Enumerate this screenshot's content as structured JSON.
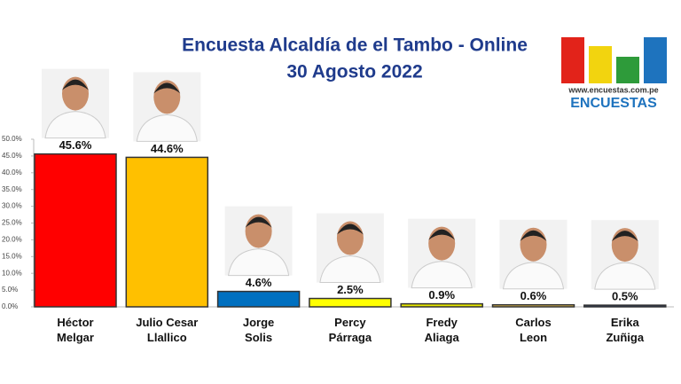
{
  "chart_data": {
    "type": "bar",
    "title": "Encuesta Alcaldía de el Tambo - Online",
    "subtitle": "30 Agosto 2022",
    "logo_url": "www.encuestas.com.pe",
    "logo_text": "ENCUESTAS",
    "categories": [
      "Héctor\nMelgar",
      "Julio Cesar\nLlallico",
      "Jorge\nSolis",
      "Percy\nPárraga",
      "Fredy\nAliaga",
      "Carlos\nLeon",
      "Erika\nZuñiga"
    ],
    "values": [
      45.6,
      44.6,
      4.6,
      2.5,
      0.9,
      0.6,
      0.5
    ],
    "value_labels": [
      "45.6%",
      "44.6%",
      "4.6%",
      "2.5%",
      "0.9%",
      "0.6%",
      "0.5%"
    ],
    "colors": [
      "#ff0000",
      "#ffc000",
      "#0070c0",
      "#ffff00",
      "#e6e600",
      "#f2c94c",
      "#1f3864"
    ],
    "ylim": [
      0,
      50
    ],
    "yticks": [
      {
        "value": 0,
        "label": "0.0%"
      },
      {
        "value": 5,
        "label": "5.0%"
      },
      {
        "value": 10,
        "label": "10.0%"
      },
      {
        "value": 15,
        "label": "15.0%"
      },
      {
        "value": 20,
        "label": "20.0%"
      },
      {
        "value": 25,
        "label": "25.0%"
      },
      {
        "value": 30,
        "label": "30.0%"
      },
      {
        "value": 35,
        "label": "35.0%"
      },
      {
        "value": 40,
        "label": "40.0%"
      },
      {
        "value": 45,
        "label": "45.0%"
      },
      {
        "value": 50,
        "label": "50.0%"
      }
    ],
    "grid": false
  }
}
